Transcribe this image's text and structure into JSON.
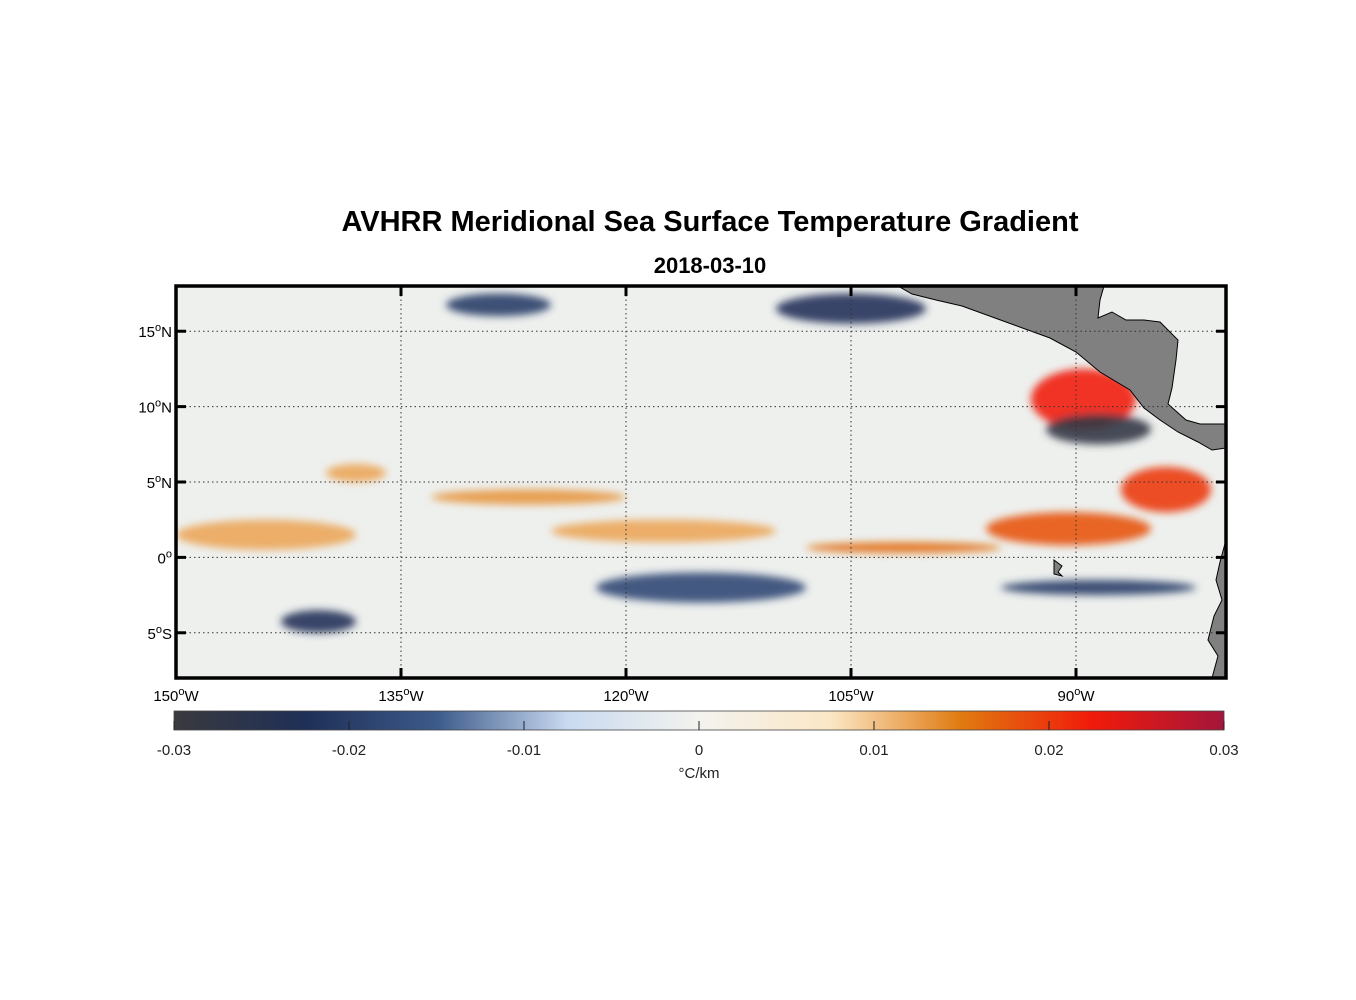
{
  "title": "AVHRR Meridional Sea Surface Temperature Gradient",
  "subtitle": "2018-03-10",
  "map": {
    "lon_range": [
      -150,
      -80
    ],
    "lat_range": [
      -8,
      18
    ],
    "lon_ticks": [
      {
        "value": -150,
        "num": "150",
        "dir": "W"
      },
      {
        "value": -135,
        "num": "135",
        "dir": "W"
      },
      {
        "value": -120,
        "num": "120",
        "dir": "W"
      },
      {
        "value": -105,
        "num": "105",
        "dir": "W"
      },
      {
        "value": -90,
        "num": "90",
        "dir": "W"
      }
    ],
    "lat_ticks": [
      {
        "value": 15,
        "num": "15",
        "dir": "N"
      },
      {
        "value": 10,
        "num": "10",
        "dir": "N"
      },
      {
        "value": 5,
        "num": "5",
        "dir": "N"
      },
      {
        "value": 0,
        "num": "0",
        "dir": ""
      },
      {
        "value": -5,
        "num": "5",
        "dir": "S"
      }
    ],
    "degree_symbol": "o",
    "land_color": "#808080",
    "grid": "dotted"
  },
  "colorbar": {
    "range": [
      -0.03,
      0.03
    ],
    "tick_values": [
      -0.03,
      -0.02,
      -0.01,
      0,
      0.01,
      0.02,
      0.03
    ],
    "tick_labels": [
      "-0.03",
      "-0.02",
      "-0.01",
      "0",
      "0.01",
      "0.02",
      "0.03"
    ],
    "units_label": "°C/km",
    "colors": [
      "#3a3a3e",
      "#1f2f57",
      "#3c5a8a",
      "#c9daf0",
      "#f3f3ef",
      "#fbe7c6",
      "#e07a10",
      "#f11a0a",
      "#a3163b"
    ]
  },
  "chart_data": {
    "type": "heatmap",
    "title": "AVHRR Meridional Sea Surface Temperature Gradient",
    "subtitle": "2018-03-10",
    "x_range_lon": [
      -150,
      -80
    ],
    "y_range_lat": [
      -8,
      18
    ],
    "value_range": [
      -0.03,
      0.03
    ],
    "units": "°C/km",
    "features": [
      {
        "lon": [
          -150,
          -138
        ],
        "lat": [
          0.5,
          2.5
        ],
        "value": 0.012
      },
      {
        "lon": [
          -140,
          -136
        ],
        "lat": [
          5.0,
          6.2
        ],
        "value": 0.012
      },
      {
        "lon": [
          -133,
          -120
        ],
        "lat": [
          3.5,
          4.5
        ],
        "value": 0.013
      },
      {
        "lon": [
          -125,
          -110
        ],
        "lat": [
          1.0,
          2.5
        ],
        "value": 0.012
      },
      {
        "lon": [
          -108,
          -95
        ],
        "lat": [
          0.3,
          1.0
        ],
        "value": 0.016
      },
      {
        "lon": [
          -96,
          -85
        ],
        "lat": [
          0.8,
          3.0
        ],
        "value": 0.018
      },
      {
        "lon": [
          -93,
          -86
        ],
        "lat": [
          8.5,
          12.5
        ],
        "value": 0.022
      },
      {
        "lon": [
          -87,
          -81
        ],
        "lat": [
          3.0,
          6.0
        ],
        "value": 0.02
      },
      {
        "lon": [
          -122,
          -108
        ],
        "lat": [
          -3.0,
          -1.0
        ],
        "value": -0.018
      },
      {
        "lon": [
          -143,
          -138
        ],
        "lat": [
          -5.0,
          -3.5
        ],
        "value": -0.022
      },
      {
        "lon": [
          -95,
          -82
        ],
        "lat": [
          -2.5,
          -1.5
        ],
        "value": -0.02
      },
      {
        "lon": [
          -92,
          -85
        ],
        "lat": [
          7.5,
          9.5
        ],
        "value": -0.028
      },
      {
        "lon": [
          -132,
          -125
        ],
        "lat": [
          16.0,
          17.5
        ],
        "value": -0.02
      },
      {
        "lon": [
          -110,
          -100
        ],
        "lat": [
          15.5,
          17.5
        ],
        "value": -0.022
      }
    ]
  }
}
